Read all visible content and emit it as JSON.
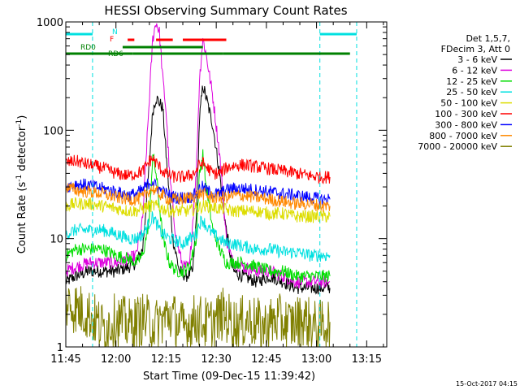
{
  "chart_data": {
    "type": "line",
    "title": "HESSI Observing Summary Count Rates",
    "xlabel": "Start Time (09-Dec-15 11:39:42)",
    "ylabel_main": "Count Rate (s",
    "ylabel_sup1": "-1",
    "ylabel_mid": " detector",
    "ylabel_sup2": "-1",
    "ylabel_end": ")",
    "yscale": "log",
    "ylim": [
      1,
      1000
    ],
    "xlim_minutes": [
      705,
      801
    ],
    "x_ticks": [
      {
        "label": "11:45",
        "t": 705
      },
      {
        "label": "12:00",
        "t": 720
      },
      {
        "label": "12:15",
        "t": 735
      },
      {
        "label": "12:30",
        "t": 750
      },
      {
        "label": "12:45",
        "t": 765
      },
      {
        "label": "13:00",
        "t": 780
      },
      {
        "label": "13:15",
        "t": 795
      }
    ],
    "y_ticks": [
      {
        "label": "1",
        "v": 1
      },
      {
        "label": "10",
        "v": 10
      },
      {
        "label": "100",
        "v": 100
      },
      {
        "label": "1000",
        "v": 1000
      }
    ],
    "legend_header": [
      "Det 1,5,7,",
      "FDecim 3, Att 0"
    ],
    "series": [
      {
        "name": "3 - 6 keV",
        "color": "#000000",
        "points": [
          [
            705,
            4
          ],
          [
            708,
            4.5
          ],
          [
            712,
            5
          ],
          [
            716,
            5
          ],
          [
            720,
            5
          ],
          [
            724,
            5.5
          ],
          [
            726,
            6
          ],
          [
            728,
            8
          ],
          [
            730,
            50
          ],
          [
            731,
            150
          ],
          [
            732,
            200
          ],
          [
            733,
            180
          ],
          [
            734,
            160
          ],
          [
            735,
            60
          ],
          [
            737,
            10
          ],
          [
            739,
            5
          ],
          [
            741,
            4.5
          ],
          [
            743,
            5
          ],
          [
            744,
            15
          ],
          [
            745,
            130
          ],
          [
            746,
            260
          ],
          [
            747,
            200
          ],
          [
            749,
            110
          ],
          [
            751,
            40
          ],
          [
            753,
            12
          ],
          [
            755,
            5
          ],
          [
            758,
            4.5
          ],
          [
            762,
            4
          ],
          [
            766,
            4.5
          ],
          [
            770,
            4
          ],
          [
            774,
            3.5
          ],
          [
            778,
            3.5
          ],
          [
            782,
            3.5
          ],
          [
            784,
            3.5
          ]
        ]
      },
      {
        "name": "6 - 12 keV",
        "color": "#dd00dd",
        "points": [
          [
            705,
            5
          ],
          [
            708,
            5.5
          ],
          [
            712,
            6
          ],
          [
            716,
            6
          ],
          [
            720,
            6
          ],
          [
            724,
            6.5
          ],
          [
            726,
            7
          ],
          [
            728,
            15
          ],
          [
            730,
            200
          ],
          [
            731,
            700
          ],
          [
            732,
            1000
          ],
          [
            733,
            800
          ],
          [
            734,
            300
          ],
          [
            735,
            150
          ],
          [
            736,
            40
          ],
          [
            738,
            10
          ],
          [
            740,
            5.5
          ],
          [
            742,
            5.5
          ],
          [
            744,
            40
          ],
          [
            745,
            300
          ],
          [
            746,
            700
          ],
          [
            747,
            500
          ],
          [
            749,
            200
          ],
          [
            751,
            60
          ],
          [
            753,
            10
          ],
          [
            755,
            6
          ],
          [
            758,
            5.5
          ],
          [
            762,
            5
          ],
          [
            766,
            5
          ],
          [
            770,
            4.5
          ],
          [
            774,
            4
          ],
          [
            778,
            4
          ],
          [
            782,
            4
          ],
          [
            784,
            4
          ]
        ]
      },
      {
        "name": "12 - 25 keV",
        "color": "#00dd00",
        "points": [
          [
            705,
            7
          ],
          [
            708,
            8
          ],
          [
            712,
            8
          ],
          [
            716,
            8
          ],
          [
            720,
            7
          ],
          [
            724,
            6.5
          ],
          [
            726,
            6
          ],
          [
            728,
            7
          ],
          [
            730,
            15
          ],
          [
            731,
            60
          ],
          [
            732,
            40
          ],
          [
            733,
            20
          ],
          [
            734,
            10
          ],
          [
            736,
            6
          ],
          [
            738,
            5
          ],
          [
            740,
            5
          ],
          [
            742,
            5.5
          ],
          [
            744,
            10
          ],
          [
            745,
            40
          ],
          [
            746,
            60
          ],
          [
            747,
            30
          ],
          [
            749,
            12
          ],
          [
            751,
            8
          ],
          [
            753,
            6
          ],
          [
            755,
            6
          ],
          [
            758,
            6
          ],
          [
            762,
            5.5
          ],
          [
            766,
            5
          ],
          [
            770,
            5
          ],
          [
            774,
            4.5
          ],
          [
            778,
            4.5
          ],
          [
            782,
            4.5
          ],
          [
            784,
            4.5
          ]
        ]
      },
      {
        "name": "25 - 50 keV",
        "color": "#00e0e0",
        "points": [
          [
            705,
            11
          ],
          [
            708,
            12
          ],
          [
            712,
            12
          ],
          [
            716,
            12
          ],
          [
            720,
            11
          ],
          [
            724,
            10
          ],
          [
            726,
            10
          ],
          [
            728,
            11
          ],
          [
            730,
            14
          ],
          [
            731,
            16
          ],
          [
            732,
            14
          ],
          [
            733,
            12
          ],
          [
            734,
            11
          ],
          [
            736,
            10
          ],
          [
            738,
            9.5
          ],
          [
            740,
            9
          ],
          [
            742,
            10
          ],
          [
            744,
            11
          ],
          [
            745,
            14
          ],
          [
            746,
            15
          ],
          [
            747,
            13
          ],
          [
            749,
            11
          ],
          [
            751,
            10
          ],
          [
            753,
            9
          ],
          [
            755,
            9
          ],
          [
            758,
            8.5
          ],
          [
            762,
            8
          ],
          [
            766,
            8
          ],
          [
            770,
            7.5
          ],
          [
            774,
            7.5
          ],
          [
            778,
            7
          ],
          [
            782,
            7
          ],
          [
            784,
            7
          ]
        ]
      },
      {
        "name": "50 - 100 keV",
        "color": "#dddd00",
        "points": [
          [
            705,
            20
          ],
          [
            708,
            21
          ],
          [
            712,
            21
          ],
          [
            716,
            20
          ],
          [
            720,
            19
          ],
          [
            724,
            18
          ],
          [
            726,
            18
          ],
          [
            728,
            19
          ],
          [
            730,
            20
          ],
          [
            732,
            20
          ],
          [
            734,
            19
          ],
          [
            736,
            18
          ],
          [
            738,
            18
          ],
          [
            740,
            18
          ],
          [
            742,
            18
          ],
          [
            744,
            19
          ],
          [
            746,
            20
          ],
          [
            748,
            20
          ],
          [
            750,
            19
          ],
          [
            752,
            19
          ],
          [
            754,
            18
          ],
          [
            758,
            18
          ],
          [
            762,
            18
          ],
          [
            766,
            17
          ],
          [
            770,
            17
          ],
          [
            774,
            16
          ],
          [
            778,
            16
          ],
          [
            782,
            16
          ],
          [
            784,
            16
          ]
        ]
      },
      {
        "name": "100 - 300 keV",
        "color": "#ff0000",
        "points": [
          [
            705,
            50
          ],
          [
            708,
            52
          ],
          [
            712,
            48
          ],
          [
            716,
            45
          ],
          [
            720,
            40
          ],
          [
            724,
            38
          ],
          [
            726,
            40
          ],
          [
            728,
            42
          ],
          [
            730,
            52
          ],
          [
            731,
            55
          ],
          [
            732,
            50
          ],
          [
            734,
            42
          ],
          [
            736,
            38
          ],
          [
            738,
            37
          ],
          [
            740,
            37
          ],
          [
            742,
            38
          ],
          [
            744,
            42
          ],
          [
            745,
            48
          ],
          [
            746,
            50
          ],
          [
            747,
            46
          ],
          [
            749,
            40
          ],
          [
            751,
            40
          ],
          [
            753,
            45
          ],
          [
            755,
            47
          ],
          [
            758,
            48
          ],
          [
            762,
            46
          ],
          [
            766,
            44
          ],
          [
            770,
            42
          ],
          [
            774,
            40
          ],
          [
            778,
            38
          ],
          [
            782,
            37
          ],
          [
            784,
            37
          ]
        ]
      },
      {
        "name": "300 - 800 keV",
        "color": "#0000ff",
        "points": [
          [
            705,
            30
          ],
          [
            708,
            32
          ],
          [
            712,
            31
          ],
          [
            716,
            29
          ],
          [
            720,
            27
          ],
          [
            724,
            25
          ],
          [
            726,
            26
          ],
          [
            728,
            28
          ],
          [
            730,
            33
          ],
          [
            731,
            34
          ],
          [
            732,
            30
          ],
          [
            734,
            27
          ],
          [
            736,
            25
          ],
          [
            738,
            24
          ],
          [
            740,
            24
          ],
          [
            742,
            24
          ],
          [
            744,
            26
          ],
          [
            745,
            29
          ],
          [
            746,
            30
          ],
          [
            747,
            28
          ],
          [
            749,
            26
          ],
          [
            751,
            26
          ],
          [
            753,
            28
          ],
          [
            755,
            29
          ],
          [
            758,
            29
          ],
          [
            762,
            28
          ],
          [
            766,
            27
          ],
          [
            770,
            26
          ],
          [
            774,
            25
          ],
          [
            778,
            24
          ],
          [
            782,
            23
          ],
          [
            784,
            23
          ]
        ]
      },
      {
        "name": "800 - 7000 keV",
        "color": "#ff8800",
        "points": [
          [
            705,
            30
          ],
          [
            708,
            28
          ],
          [
            712,
            27
          ],
          [
            716,
            26
          ],
          [
            720,
            24
          ],
          [
            724,
            23
          ],
          [
            726,
            23
          ],
          [
            728,
            24
          ],
          [
            730,
            28
          ],
          [
            731,
            29
          ],
          [
            732,
            27
          ],
          [
            734,
            25
          ],
          [
            736,
            23
          ],
          [
            738,
            23
          ],
          [
            740,
            23
          ],
          [
            742,
            24
          ],
          [
            744,
            25
          ],
          [
            745,
            26
          ],
          [
            746,
            26
          ],
          [
            747,
            25
          ],
          [
            749,
            24
          ],
          [
            751,
            24
          ],
          [
            753,
            24
          ],
          [
            755,
            25
          ],
          [
            758,
            25
          ],
          [
            762,
            24
          ],
          [
            766,
            23
          ],
          [
            770,
            22
          ],
          [
            774,
            21
          ],
          [
            778,
            21
          ],
          [
            782,
            20
          ],
          [
            784,
            20
          ]
        ]
      },
      {
        "name": "7000 - 20000 keV",
        "color": "#808000",
        "points": [
          [
            705,
            2.5
          ],
          [
            708,
            2.3
          ],
          [
            712,
            2
          ],
          [
            716,
            1.5
          ],
          [
            720,
            1.8
          ],
          [
            724,
            1.6
          ],
          [
            728,
            1.8
          ],
          [
            732,
            1.6
          ],
          [
            736,
            2
          ],
          [
            740,
            1.5
          ],
          [
            744,
            1.8
          ],
          [
            748,
            1.6
          ],
          [
            752,
            2
          ],
          [
            756,
            1.6
          ],
          [
            760,
            1.8
          ],
          [
            764,
            1.5
          ],
          [
            768,
            1.8
          ],
          [
            772,
            1.6
          ],
          [
            776,
            1.8
          ],
          [
            780,
            1.5
          ],
          [
            784,
            1.7
          ]
        ]
      }
    ],
    "annotations": {
      "N": "N",
      "F": "F",
      "RD0": "RD0",
      "RD6": "RD6",
      "night_bars": [
        [
          705,
          713
        ],
        [
          781,
          792
        ]
      ],
      "flare_bars": [
        [
          732,
          737
        ],
        [
          740,
          746
        ],
        [
          746,
          753
        ]
      ],
      "rd_bars": [
        [
          705,
          725
        ],
        [
          725,
          752
        ],
        [
          752,
          788
        ],
        [
          788,
          790
        ]
      ],
      "night_lines": [
        713,
        781,
        792
      ]
    },
    "grid": false,
    "legend_position": "right"
  },
  "footer": {
    "timestamp": "15-Oct-2017 04:15"
  }
}
